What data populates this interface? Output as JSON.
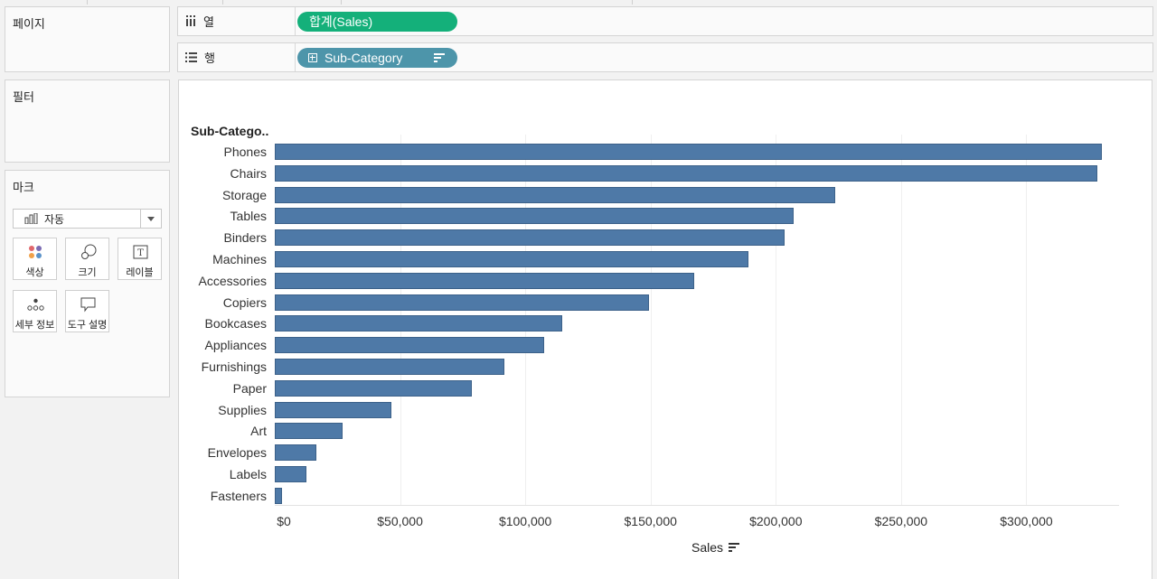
{
  "panels": {
    "pages_title": "페이지",
    "filters_title": "필터",
    "marks_title": "마크"
  },
  "shelves": {
    "columns": {
      "label": "열",
      "icon": "columns-icon",
      "pill": "합계(Sales)",
      "pill_color": "#14b07a"
    },
    "rows": {
      "label": "행",
      "icon": "rows-icon",
      "pill": "Sub-Category",
      "pill_color": "#4d95aa"
    }
  },
  "marks": {
    "type_value": "자동",
    "buttons": [
      {
        "label": "색상",
        "icon": "color-icon"
      },
      {
        "label": "크기",
        "icon": "size-icon"
      },
      {
        "label": "레이블",
        "icon": "label-icon"
      },
      {
        "label": "세부 정보",
        "icon": "detail-icon"
      },
      {
        "label": "도구 설명",
        "icon": "tooltip-icon"
      }
    ]
  },
  "chart_data": {
    "type": "bar",
    "orientation": "horizontal",
    "row_header": "Sub-Catego..",
    "xlabel": "Sales",
    "bar_color": "#4e79a7",
    "categories": [
      "Phones",
      "Chairs",
      "Storage",
      "Tables",
      "Binders",
      "Machines",
      "Accessories",
      "Copiers",
      "Bookcases",
      "Appliances",
      "Furnishings",
      "Paper",
      "Supplies",
      "Art",
      "Envelopes",
      "Labels",
      "Fasteners"
    ],
    "values": [
      330007,
      328449,
      223844,
      206966,
      203413,
      189239,
      167380,
      149528,
      114880,
      107532,
      91705,
      78479,
      46674,
      27119,
      16476,
      12486,
      3024
    ],
    "xlim": [
      0,
      337000
    ],
    "ticks": [
      0,
      50000,
      100000,
      150000,
      200000,
      250000,
      300000
    ],
    "tick_labels": [
      "$0",
      "$50,000",
      "$100,000",
      "$150,000",
      "$200,000",
      "$250,000",
      "$300,000"
    ],
    "grid": true
  }
}
